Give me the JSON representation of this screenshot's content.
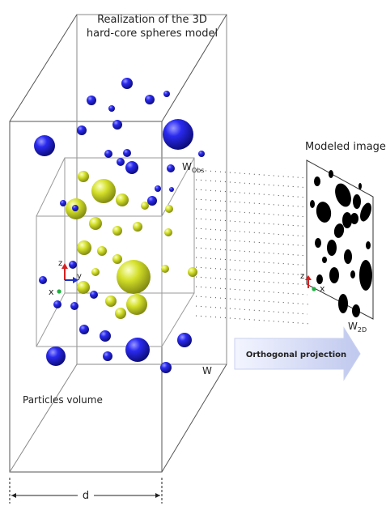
{
  "title_lines": [
    "Realization of the 3D",
    "hard-core spheres model"
  ],
  "modeled_image_label": "Modeled image",
  "w_obs": {
    "base": "W",
    "sub": "Obs"
  },
  "w_label": "W",
  "w2d": {
    "base": "W",
    "sub": "2D"
  },
  "projection_label": "Orthogonal projection",
  "particles_volume_label": "Particles volume",
  "dimension_label": "d",
  "axes": {
    "z": "z",
    "y": "y",
    "x": "x"
  },
  "colors": {
    "blue_sphere": "#1a1ad6",
    "yellow_sphere": "#c8d41c",
    "arrow_fill": "#cfd6f2",
    "arrow_text": "#2a3f9a",
    "axis_z": "#d42020",
    "axis_y": "#2030c0",
    "axis_x": "#20b040"
  }
}
